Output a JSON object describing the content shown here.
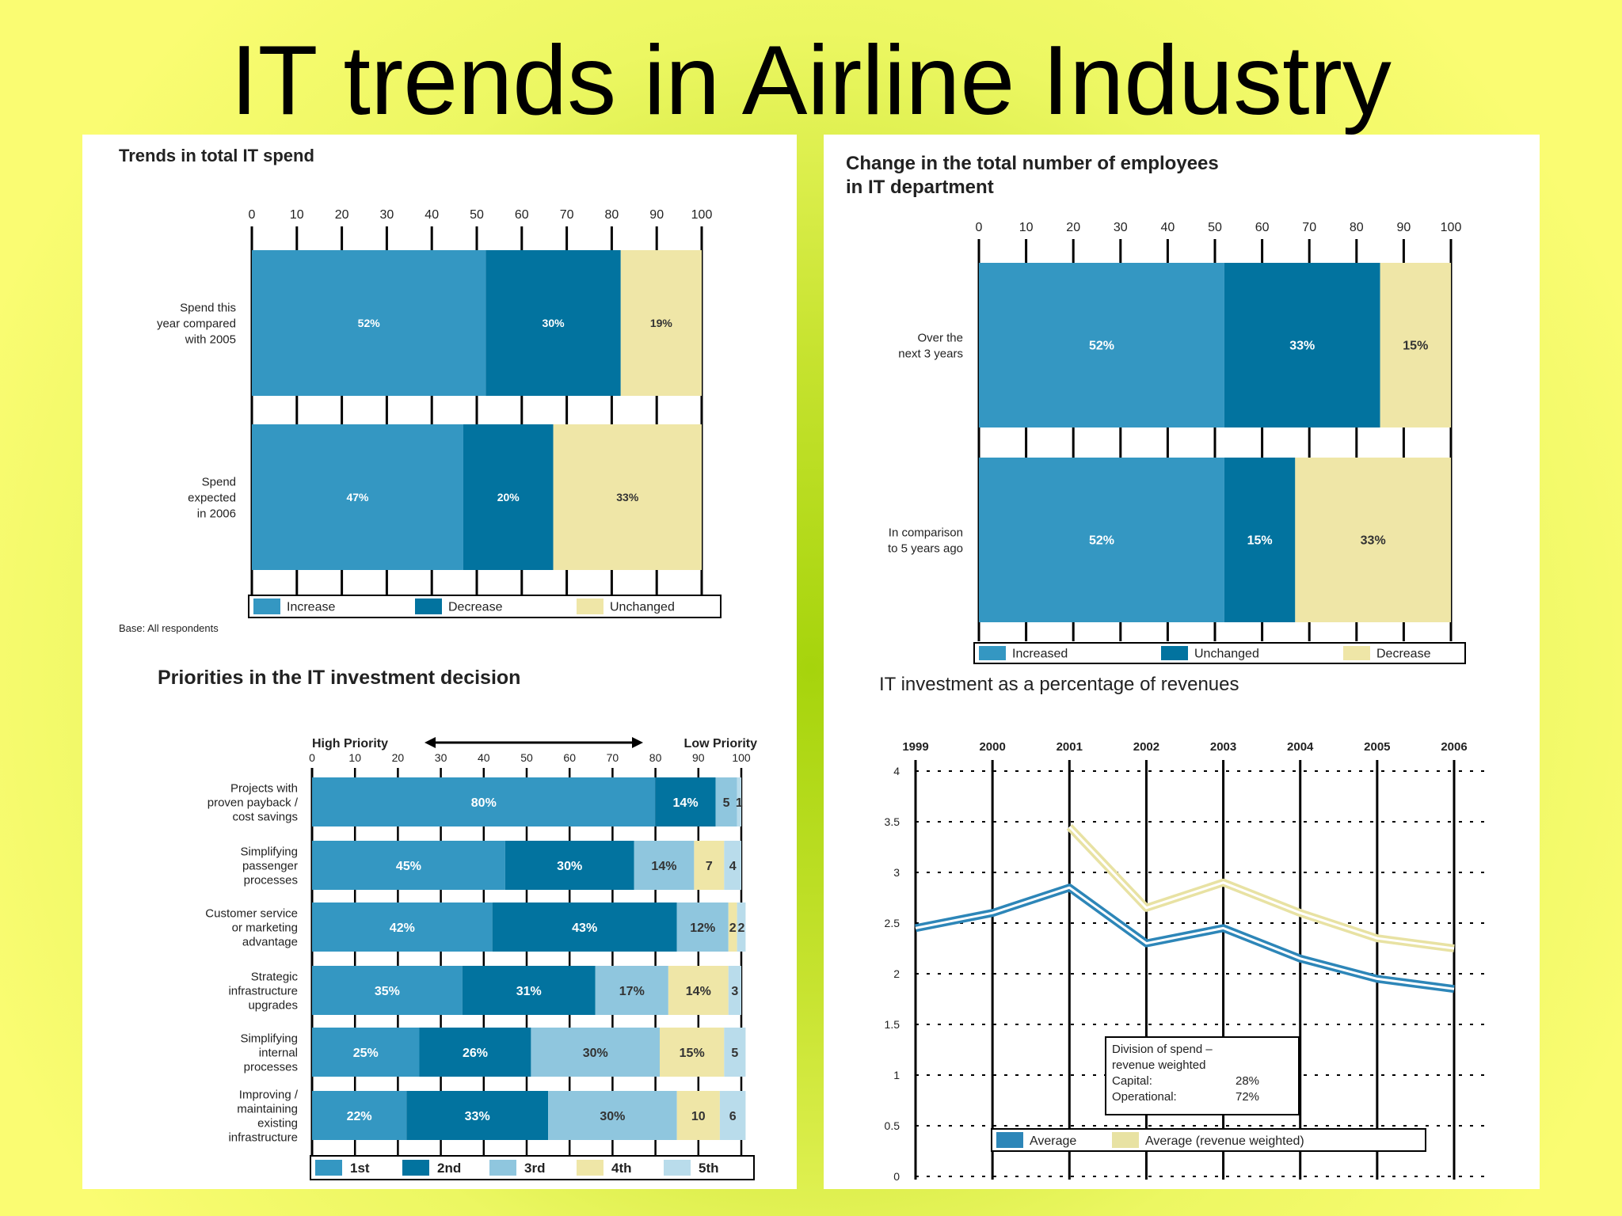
{
  "slide": {
    "title": "IT trends in Airline Industry"
  },
  "colors": {
    "c1": "#3497c2",
    "c2": "#02739f",
    "c3": "#efe6a7",
    "c4": "#8fc6de",
    "c5": "#b9dceb",
    "line_avg": "#2d86b8",
    "line_weighted": "#e8e2a3"
  },
  "chart_data": [
    {
      "type": "bar",
      "orientation": "horizontal",
      "stacked": true,
      "title": "Trends in total IT spend",
      "categories": [
        "Spend this year compared with 2005",
        "Spend expected in 2006"
      ],
      "series": [
        {
          "name": "Increase",
          "values": [
            52,
            47
          ]
        },
        {
          "name": "Decrease",
          "values": [
            30,
            20
          ]
        },
        {
          "name": "Unchanged",
          "values": [
            19,
            33
          ]
        }
      ],
      "value_labels": [
        [
          "52%",
          "30%",
          "19%"
        ],
        [
          "47%",
          "20%",
          "33%"
        ]
      ],
      "xlim": [
        0,
        100
      ],
      "xticks": [
        "0",
        "10",
        "20",
        "30",
        "40",
        "50",
        "60",
        "70",
        "80",
        "90",
        "100"
      ],
      "legend": "bottom",
      "footnote": "Base: All respondents"
    },
    {
      "type": "bar",
      "orientation": "horizontal",
      "stacked": true,
      "title": "Change in the total number of employees in IT department",
      "categories": [
        "Over the next 3 years",
        "In comparison to 5 years ago"
      ],
      "series": [
        {
          "name": "Increased",
          "values": [
            52,
            52
          ]
        },
        {
          "name": "Unchanged",
          "values": [
            33,
            15
          ]
        },
        {
          "name": "Decrease",
          "values": [
            15,
            33
          ]
        }
      ],
      "value_labels": [
        [
          "52%",
          "33%",
          "15%"
        ],
        [
          "52%",
          "15%",
          "33%"
        ]
      ],
      "xlim": [
        0,
        100
      ],
      "xticks": [
        "0",
        "10",
        "20",
        "30",
        "40",
        "50",
        "60",
        "70",
        "80",
        "90",
        "100"
      ],
      "legend": "bottom"
    },
    {
      "type": "bar",
      "orientation": "horizontal",
      "stacked": true,
      "title": "Priorities in the IT investment decision",
      "axis_caption_left": "High Priority",
      "axis_caption_right": "Low Priority",
      "categories": [
        "Projects with proven payback / cost savings",
        "Simplifying passenger processes",
        "Customer service or marketing advantage",
        "Strategic infrastructure upgrades",
        "Simplifying internal processes",
        "Improving / maintaining existing infrastructure"
      ],
      "series": [
        {
          "name": "1st",
          "values": [
            80,
            45,
            42,
            35,
            25,
            22
          ]
        },
        {
          "name": "2nd",
          "values": [
            14,
            30,
            43,
            31,
            26,
            33
          ]
        },
        {
          "name": "3rd",
          "values": [
            5,
            14,
            12,
            17,
            30,
            30
          ]
        },
        {
          "name": "4th",
          "values": [
            0,
            7,
            2,
            14,
            15,
            10
          ]
        },
        {
          "name": "5th",
          "values": [
            1,
            4,
            2,
            3,
            5,
            6
          ]
        }
      ],
      "value_labels": [
        [
          "80%",
          "14%",
          "5",
          "",
          "1"
        ],
        [
          "45%",
          "30%",
          "14%",
          "7",
          "4"
        ],
        [
          "42%",
          "43%",
          "12%",
          "2",
          "2"
        ],
        [
          "35%",
          "31%",
          "17%",
          "14%",
          "3"
        ],
        [
          "25%",
          "26%",
          "30%",
          "15%",
          "5"
        ],
        [
          "22%",
          "33%",
          "30%",
          "10",
          "6"
        ]
      ],
      "xlim": [
        0,
        100
      ],
      "xticks": [
        "0",
        "10",
        "20",
        "30",
        "40",
        "50",
        "60",
        "70",
        "80",
        "90",
        "100"
      ],
      "legend": "bottom"
    },
    {
      "type": "line",
      "title": "IT investment as a percentage of revenues",
      "x": [
        "1999",
        "2000",
        "2001",
        "2002",
        "2003",
        "2004",
        "2005",
        "2006"
      ],
      "series": [
        {
          "name": "Average",
          "values": [
            2.45,
            2.6,
            2.85,
            2.3,
            2.45,
            2.15,
            1.95,
            1.85
          ]
        },
        {
          "name": "Average (revenue weighted)",
          "values": [
            null,
            null,
            3.45,
            2.65,
            2.9,
            2.6,
            2.35,
            2.25
          ]
        }
      ],
      "ylim": [
        0,
        4
      ],
      "yticks": [
        "0",
        "0.5",
        "1",
        "1.5",
        "2",
        "2.5",
        "3",
        "3.5",
        "4"
      ],
      "grid": true,
      "legend": "bottom",
      "annotation": {
        "title": "Division of spend – revenue weighted",
        "lines": [
          [
            "Capital:",
            "28%"
          ],
          [
            "Operational:",
            "72%"
          ]
        ]
      }
    }
  ]
}
